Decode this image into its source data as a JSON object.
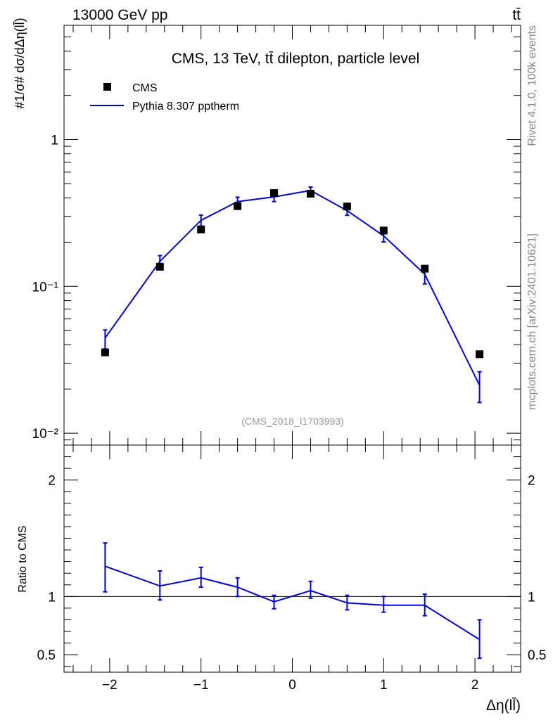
{
  "header": {
    "left": "13000 GeV pp",
    "right": "tt̄"
  },
  "side_labels": {
    "rivet": "Rivet 4.1.0,  100k events",
    "site": "mcplots.cern.ch [arXiv:2401.10621]"
  },
  "chart_data": [
    {
      "type": "scatter",
      "title": "CMS, 13 TeV, tt̄ dilepton, particle level",
      "watermark": "(CMS_2018_I1703993)",
      "ylabel": "#1/σ# dσ/dΔη(ll̄)",
      "yscale": "log",
      "ylim": [
        0.0083,
        6.0
      ],
      "xlim": [
        -2.5,
        2.5
      ],
      "ytick_labels": [
        "10⁻²",
        "10⁻¹",
        "1"
      ],
      "legend_position": "top-left",
      "x": [
        -2.05,
        -1.45,
        -1.0,
        -0.6,
        -0.2,
        0.2,
        0.6,
        1.0,
        1.45,
        2.05
      ],
      "series": [
        {
          "name": "CMS",
          "style": "markers",
          "color": "#000000",
          "values": [
            0.0355,
            0.136,
            0.244,
            0.352,
            0.432,
            0.428,
            0.35,
            0.24,
            0.132,
            0.0345
          ]
        },
        {
          "name": "Pythia 8.307 pptherm",
          "style": "line",
          "color": "#0000dd",
          "values": [
            0.0445,
            0.148,
            0.282,
            0.378,
            0.407,
            0.45,
            0.328,
            0.221,
            0.121,
            0.0212
          ],
          "err_low": [
            0.0375,
            0.135,
            0.258,
            0.352,
            0.378,
            0.425,
            0.305,
            0.201,
            0.104,
            0.0162
          ],
          "err_high": [
            0.0505,
            0.162,
            0.306,
            0.405,
            0.432,
            0.475,
            0.352,
            0.24,
            0.137,
            0.0262
          ]
        }
      ]
    },
    {
      "type": "line",
      "ylabel": "Ratio to CMS",
      "xlabel": "Δη(ll̄)",
      "ylim": [
        0.35,
        2.3
      ],
      "xlim": [
        -2.5,
        2.5
      ],
      "yticks": [
        0.5,
        1,
        2
      ],
      "ytick_labels": [
        "0.5",
        "1",
        "2"
      ],
      "xticks": [
        -2,
        -1,
        0,
        1,
        2
      ],
      "xtick_labels": [
        "−2",
        "−1",
        "0",
        "1",
        "2"
      ],
      "reference_line": 1,
      "x": [
        -2.05,
        -1.45,
        -1.0,
        -0.6,
        -0.2,
        0.2,
        0.6,
        1.0,
        1.45,
        2.05
      ],
      "series": [
        {
          "name": "Pythia 8.307 pptherm",
          "color": "#0000dd",
          "values": [
            1.26,
            1.09,
            1.16,
            1.08,
            0.955,
            1.05,
            0.945,
            0.925,
            0.925,
            0.63
          ],
          "err_low": [
            1.04,
            0.97,
            1.08,
            1.0,
            0.895,
            0.985,
            0.885,
            0.865,
            0.835,
            0.47
          ],
          "err_high": [
            1.46,
            1.22,
            1.25,
            1.16,
            1.01,
            1.13,
            1.01,
            1.0,
            1.02,
            0.8
          ]
        }
      ]
    }
  ]
}
